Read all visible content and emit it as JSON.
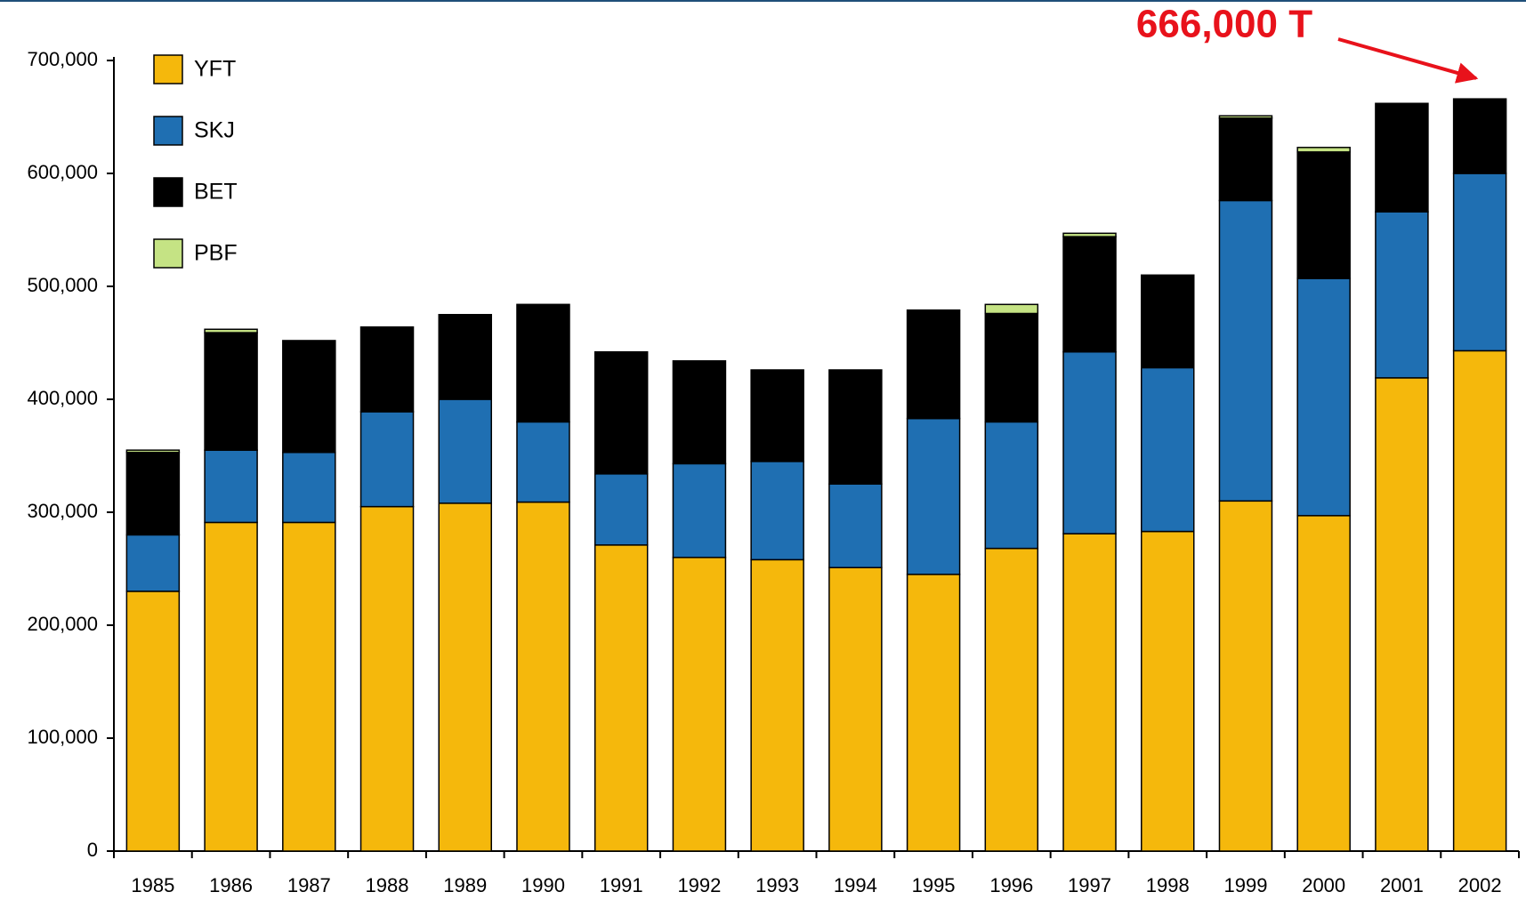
{
  "chart_data": {
    "type": "stacked_bar",
    "annotation": "666,000 T",
    "categories": [
      "1985",
      "1986",
      "1987",
      "1988",
      "1989",
      "1990",
      "1991",
      "1992",
      "1993",
      "1994",
      "1995",
      "1996",
      "1997",
      "1998",
      "1999",
      "2000",
      "2001",
      "2002"
    ],
    "series": [
      {
        "name": "YFT",
        "color": "#f5b80c",
        "values": [
          230000,
          291000,
          291000,
          305000,
          308000,
          309000,
          271000,
          260000,
          258000,
          251000,
          245000,
          268000,
          281000,
          283000,
          310000,
          297000,
          419000,
          443000
        ]
      },
      {
        "name": "SKJ",
        "color": "#1f6fb2",
        "values": [
          50000,
          64000,
          62000,
          84000,
          92000,
          71000,
          63000,
          83000,
          87000,
          74000,
          138000,
          112000,
          161000,
          145000,
          266000,
          210000,
          147000,
          157000
        ]
      },
      {
        "name": "BET",
        "color": "#000000",
        "values": [
          73000,
          104000,
          99000,
          75000,
          75000,
          104000,
          108000,
          91000,
          81000,
          101000,
          96000,
          96000,
          102000,
          82000,
          73000,
          112000,
          96000,
          66000
        ]
      },
      {
        "name": "PBF",
        "color": "#c5e384",
        "values": [
          2000,
          3000,
          0,
          0,
          0,
          0,
          0,
          0,
          0,
          0,
          0,
          8000,
          3000,
          0,
          2000,
          4000,
          0,
          0
        ]
      }
    ],
    "ylim": [
      0,
      700000
    ],
    "yticks": [
      0,
      {
        "value": 100000,
        "label": "100,000"
      },
      {
        "value": 200000,
        "label": "200,000"
      },
      {
        "value": 300000,
        "label": "300,000"
      },
      {
        "value": 400000,
        "label": "400,000"
      },
      {
        "value": 500000,
        "label": "500,000"
      },
      {
        "value": 600000,
        "label": "600,000"
      },
      {
        "value": 700000,
        "label": "700,000"
      }
    ],
    "legend": "top-left"
  }
}
